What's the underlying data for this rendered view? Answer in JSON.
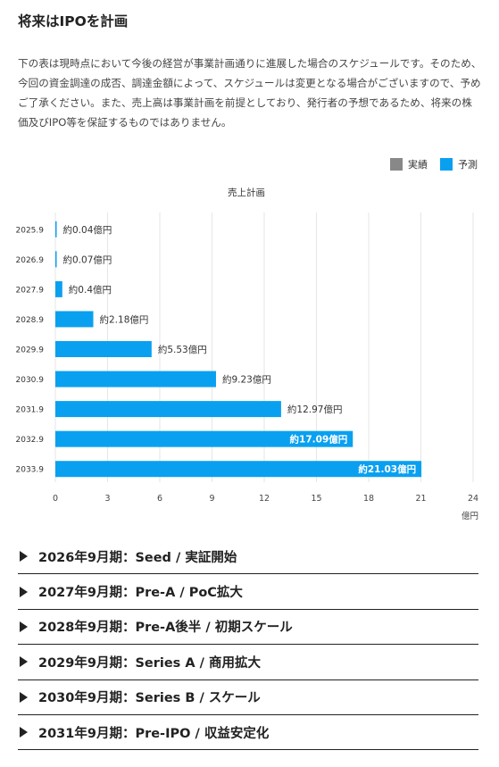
{
  "page": {
    "title": "将来はIPOを計画",
    "description": "下の表は現時点において今後の経営が事業計画通りに進展した場合のスケジュールです。そのため、今回の資金調達の成否、調達金額によって、スケジュールは変更となる場合がございますので、予めご了承ください。また、売上高は事業計画を前提としており、発行者の予想であるため、将来の株価及びIPO等を保証するものではありません。"
  },
  "legend": {
    "actual_label": "実績",
    "forecast_label": "予測",
    "actual_color": "#888888",
    "forecast_color": "#0aa0f0"
  },
  "chart_data": {
    "type": "bar",
    "orientation": "horizontal",
    "title": "売上計画",
    "unit": "億円",
    "categories": [
      "2025.9",
      "2026.9",
      "2027.9",
      "2028.9",
      "2029.9",
      "2030.9",
      "2031.9",
      "2032.9",
      "2033.9"
    ],
    "values": [
      0.04,
      0.07,
      0.4,
      2.18,
      5.53,
      9.23,
      12.97,
      17.09,
      21.03
    ],
    "data_labels": [
      "約0.04億円",
      "約0.07億円",
      "約0.4億円",
      "約2.18億円",
      "約5.53億円",
      "約9.23億円",
      "約12.97億円",
      "約17.09億円",
      "約21.03億円"
    ],
    "series": [
      {
        "name": "予測",
        "values": [
          0.04,
          0.07,
          0.4,
          2.18,
          5.53,
          9.23,
          12.97,
          17.09,
          21.03
        ]
      }
    ],
    "xlim": [
      0,
      24
    ],
    "xticks": [
      "0",
      "3",
      "6",
      "9",
      "12",
      "15",
      "18",
      "21",
      "24"
    ],
    "xlabel": "億円",
    "bar_color": "#0aa0f0",
    "grid": true
  },
  "milestones": [
    {
      "label": "2026年9月期：Seed / 実証開始"
    },
    {
      "label": "2027年9月期：Pre-A / PoC拡大"
    },
    {
      "label": "2028年9月期：Pre-A後半 / 初期スケール"
    },
    {
      "label": "2029年9月期：Series A / 商用拡大"
    },
    {
      "label": "2030年9月期：Series B / スケール"
    },
    {
      "label": "2031年9月期：Pre-IPO / 収益安定化"
    }
  ]
}
